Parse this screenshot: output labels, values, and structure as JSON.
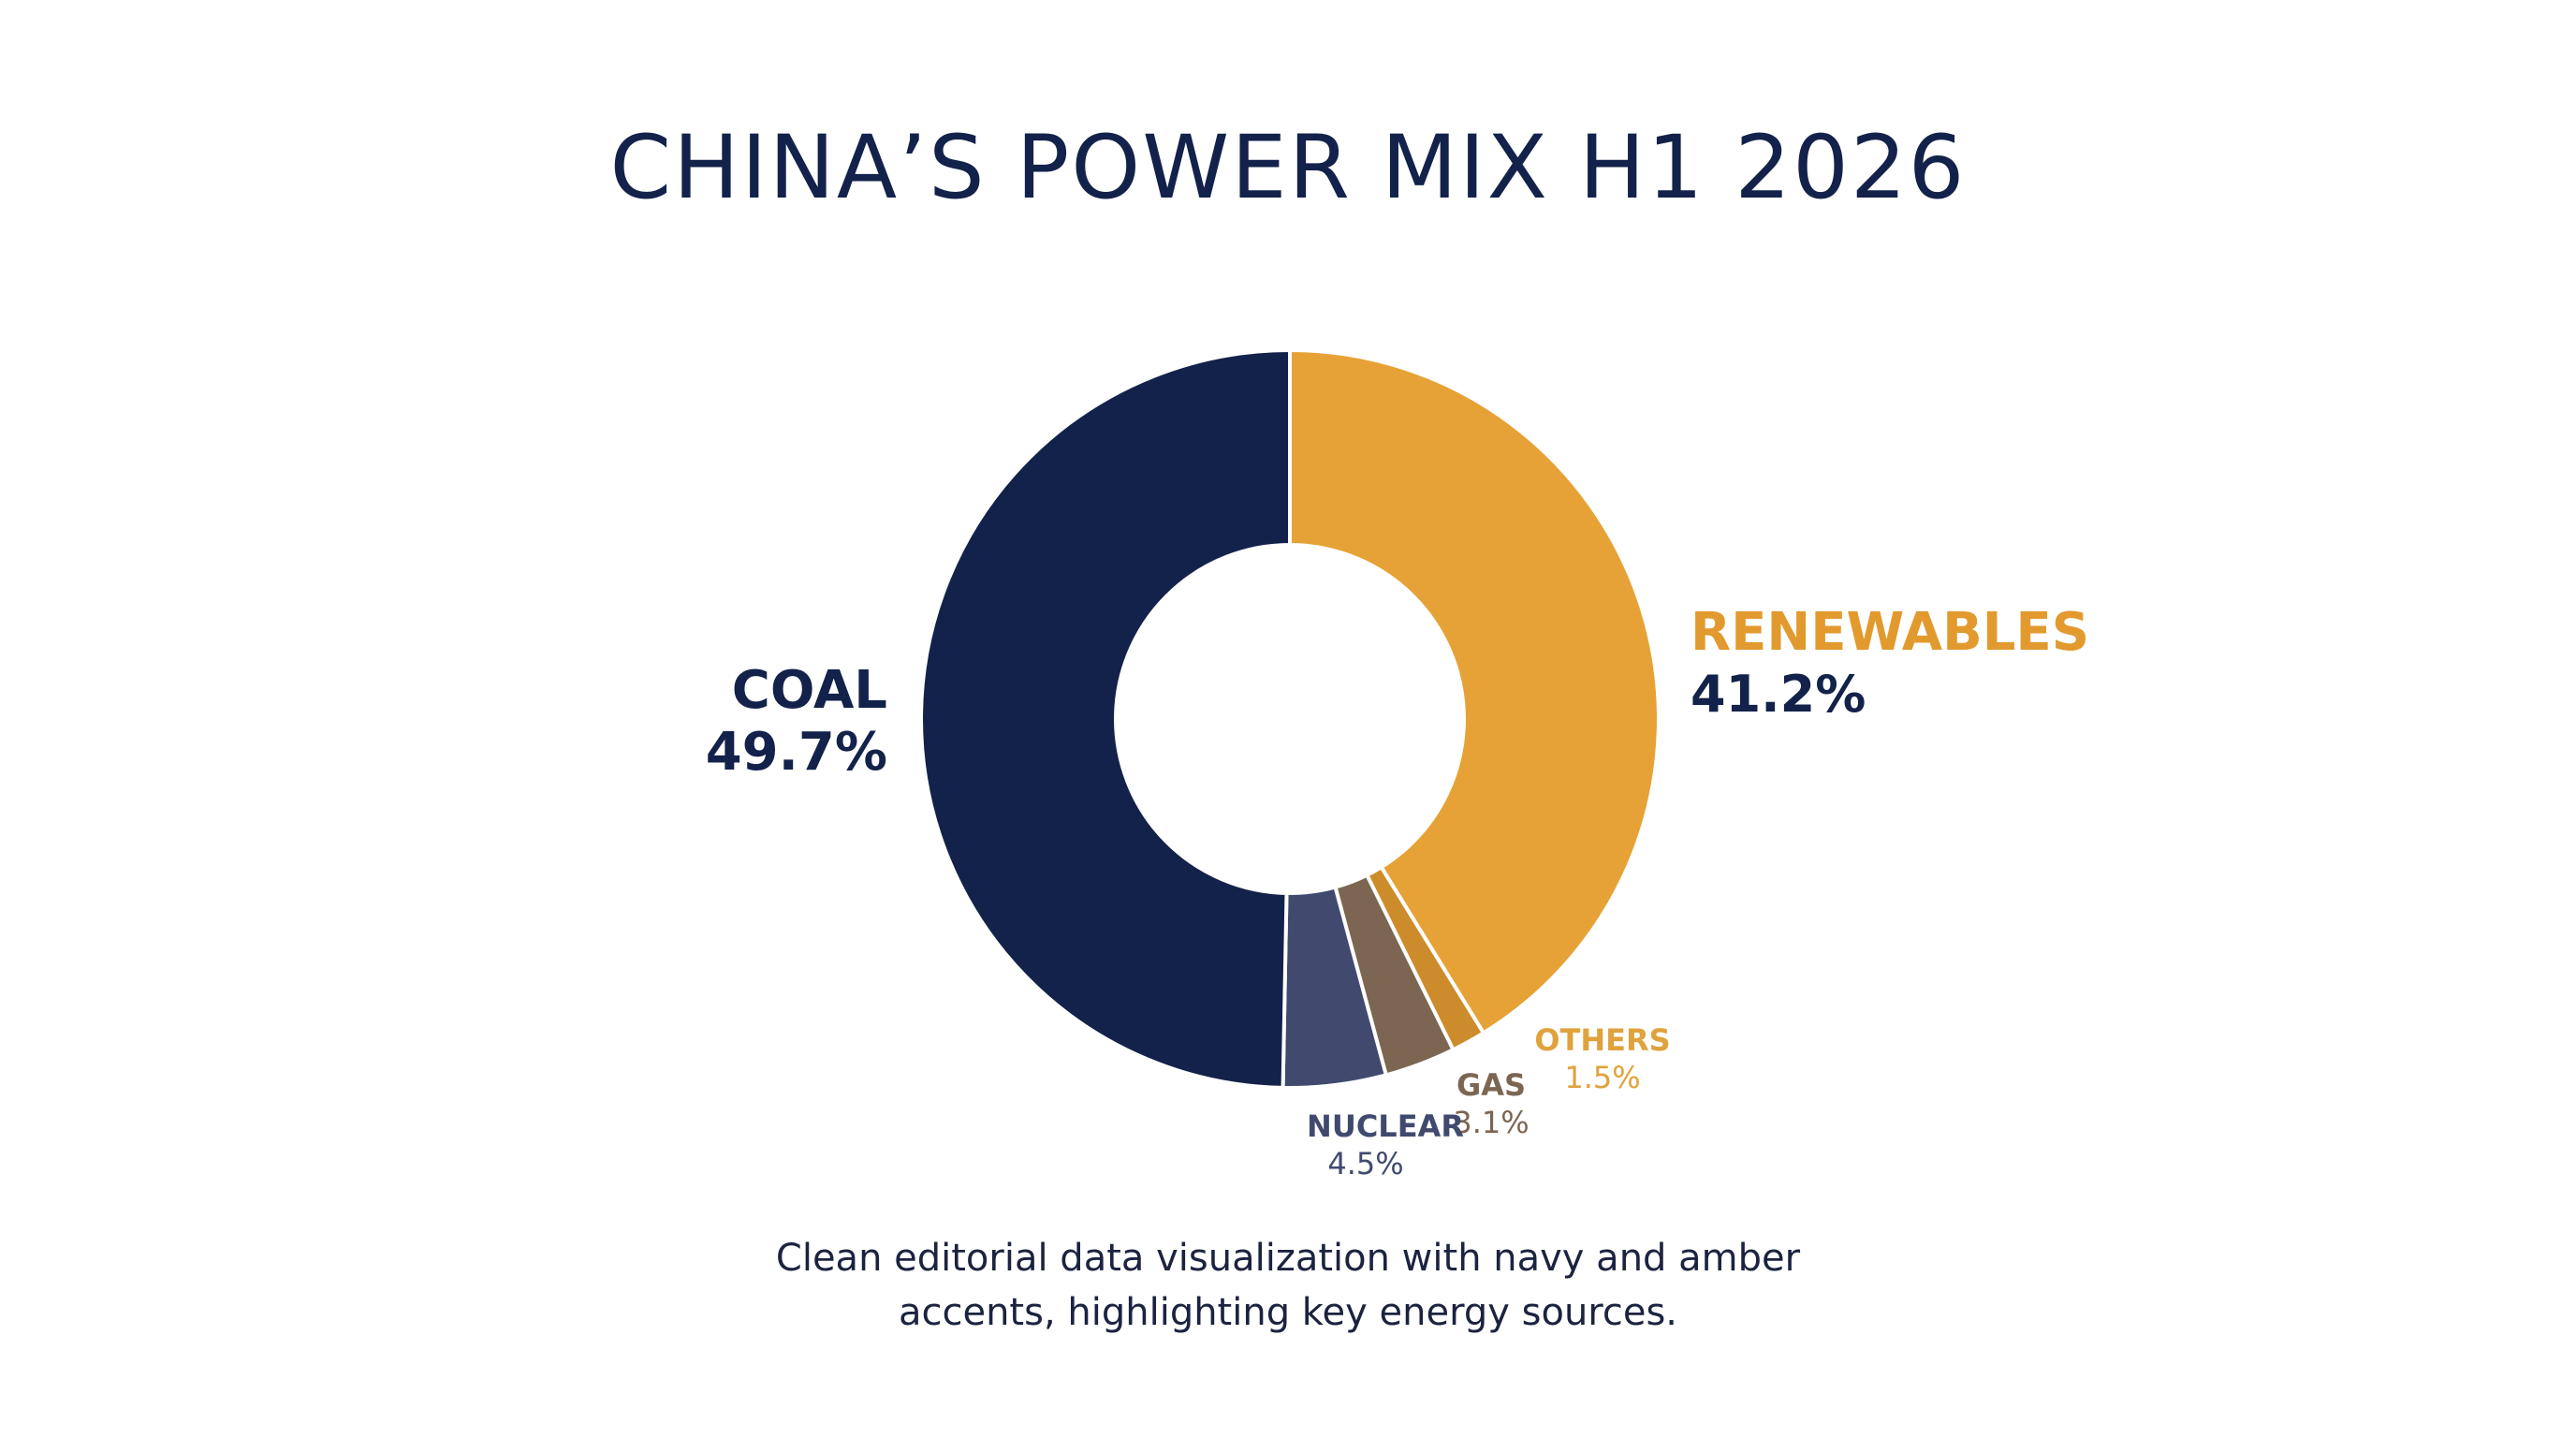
{
  "chart_data": {
    "type": "pie",
    "title": "CHINA’S POWER MIX H1 2026",
    "donut": true,
    "slices": [
      {
        "name": "RENEWABLES",
        "value": 41.2,
        "label": "41.2%",
        "color": "#e6a236",
        "name_color": "#e29a2e",
        "pct_color": "#13224a"
      },
      {
        "name": "OTHERS",
        "value": 1.5,
        "label": "1.5%",
        "color": "#cd8c2c",
        "name_color": "#e0a23c",
        "pct_color": "#e0a23c"
      },
      {
        "name": "GAS",
        "value": 3.1,
        "label": "3.1%",
        "color": "#7c6652",
        "name_color": "#7c6652",
        "pct_color": "#7c6652"
      },
      {
        "name": "NUCLEAR",
        "value": 4.5,
        "label": "4.5%",
        "color": "#414a6e",
        "name_color": "#414a6e",
        "pct_color": "#414a6e"
      },
      {
        "name": "COAL",
        "value": 49.7,
        "label": "49.7%",
        "color": "#13224a",
        "name_color": "#13224a",
        "pct_color": "#13224a"
      }
    ],
    "caption": [
      "Clean editorial data visualization with navy and amber",
      "accents, highlighting key energy sources."
    ]
  }
}
